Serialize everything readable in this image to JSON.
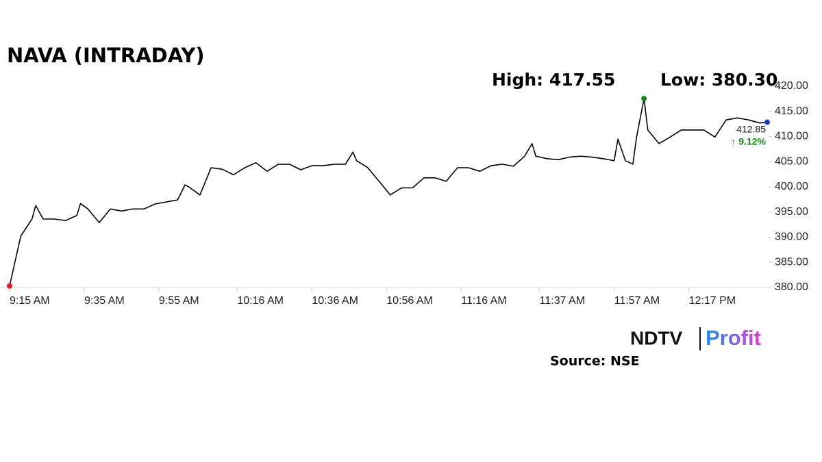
{
  "chart_data": {
    "type": "line",
    "title": "NAVA (INTRADAY)",
    "high_label": "High: 417.55",
    "low_label": "Low: 380.30",
    "last_label": "412.85",
    "change_label": "↑ 9.12%",
    "source": "Source: NSE",
    "brand": "NDTV",
    "brand_suffix": "Profit",
    "color": "#000000",
    "high_color": "#138a13",
    "low_color": "#e01b1b",
    "last_color": "#1c3fd1",
    "change_color": "#138a13",
    "x": [
      "9:15 AM",
      "9:18 AM",
      "9:21 AM",
      "9:22 AM",
      "9:24 AM",
      "9:27 AM",
      "9:30 AM",
      "9:33 AM",
      "9:34 AM",
      "9:36 AM",
      "9:39 AM",
      "9:42 AM",
      "9:45 AM",
      "9:48 AM",
      "9:51 AM",
      "9:54 AM",
      "9:57 AM",
      "10:00 AM",
      "10:02 AM",
      "10:03 AM",
      "10:06 AM",
      "10:09 AM",
      "10:12 AM",
      "10:15 AM",
      "10:18 AM",
      "10:21 AM",
      "10:24 AM",
      "10:27 AM",
      "10:30 AM",
      "10:33 AM",
      "10:36 AM",
      "10:39 AM",
      "10:42 AM",
      "10:45 AM",
      "10:47 AM",
      "10:48 AM",
      "10:51 AM",
      "10:54 AM",
      "10:57 AM",
      "11:00 AM",
      "11:03 AM",
      "11:06 AM",
      "11:09 AM",
      "11:12 AM",
      "11:15 AM",
      "11:18 AM",
      "11:21 AM",
      "11:24 AM",
      "11:27 AM",
      "11:30 AM",
      "11:33 AM",
      "11:35 AM",
      "11:36 AM",
      "11:39 AM",
      "11:42 AM",
      "11:45 AM",
      "11:48 AM",
      "11:51 AM",
      "11:54 AM",
      "11:57 AM",
      "11:58 AM",
      "12:00 PM",
      "12:02 PM",
      "12:03 PM",
      "12:05 PM",
      "12:06 PM",
      "12:09 PM",
      "12:12 PM",
      "12:15 PM",
      "12:18 PM",
      "12:21 PM",
      "12:24 PM",
      "12:27 PM",
      "12:30 PM",
      "12:33 PM",
      "12:36 PM",
      "12:38 PM"
    ],
    "values": [
      380.3,
      390.2,
      393.6,
      396.3,
      393.6,
      393.6,
      393.3,
      394.3,
      396.7,
      395.6,
      392.9,
      395.6,
      395.2,
      395.6,
      395.6,
      396.6,
      397.0,
      397.4,
      400.4,
      400.0,
      398.4,
      403.8,
      403.5,
      402.4,
      403.8,
      404.8,
      403.1,
      404.5,
      404.5,
      403.4,
      404.2,
      404.2,
      404.5,
      404.5,
      406.9,
      405.2,
      403.8,
      401.1,
      398.4,
      399.8,
      399.8,
      401.8,
      401.8,
      401.1,
      403.8,
      403.8,
      403.1,
      404.2,
      404.5,
      404.1,
      406.1,
      408.6,
      406.1,
      405.6,
      405.4,
      405.9,
      406.1,
      405.9,
      405.6,
      405.2,
      409.5,
      405.2,
      404.5,
      409.9,
      417.55,
      411.3,
      408.6,
      409.9,
      411.3,
      411.3,
      411.3,
      409.9,
      413.3,
      413.7,
      413.3,
      412.7,
      412.85
    ],
    "xlim": [
      "9:15 AM",
      "12:38 PM"
    ],
    "xticks": [
      "9:15 AM",
      "9:35 AM",
      "9:55 AM",
      "10:16 AM",
      "10:36 AM",
      "10:56 AM",
      "11:16 AM",
      "11:37 AM",
      "11:57 AM",
      "12:17 PM"
    ],
    "ylim": [
      380,
      420
    ],
    "yticks": [
      {
        "value": 380,
        "label": "380.00"
      },
      {
        "value": 385,
        "label": "385.00"
      },
      {
        "value": 390,
        "label": "390.00"
      },
      {
        "value": 395,
        "label": "395.00"
      },
      {
        "value": 400,
        "label": "400.00"
      },
      {
        "value": 405,
        "label": "405.00"
      },
      {
        "value": 410,
        "label": "410.00"
      },
      {
        "value": 415,
        "label": "415.00"
      },
      {
        "value": 420,
        "label": "420.00"
      }
    ]
  }
}
